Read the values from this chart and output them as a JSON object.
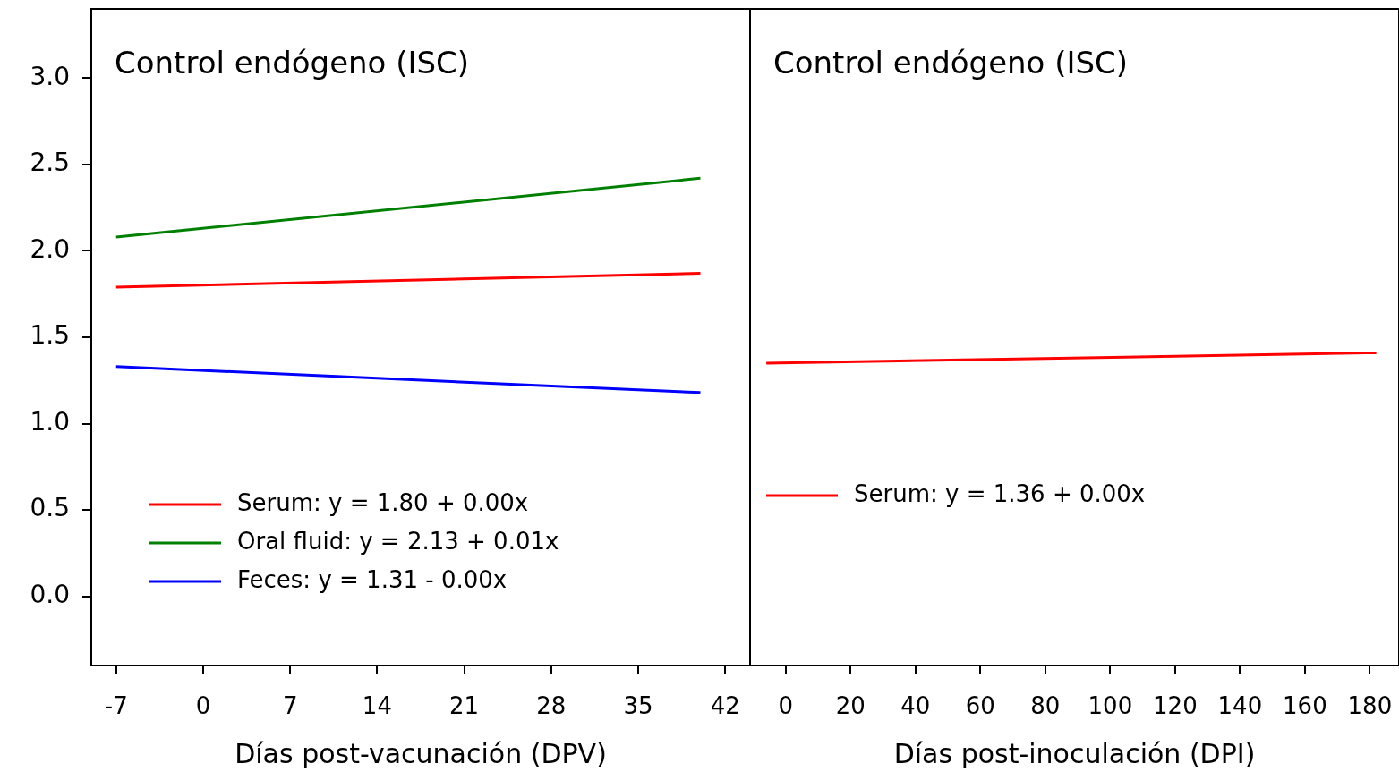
{
  "chart_data": [
    {
      "type": "line",
      "title": "Control endógeno (ISC)",
      "xlabel": "Días post-vacunación (DPV)",
      "xlim": [
        -9,
        44
      ],
      "xticks": [
        -7,
        0,
        7,
        14,
        21,
        28,
        35,
        42
      ],
      "ylim": [
        -0.4,
        3.4
      ],
      "yticks": [
        {
          "value": 0,
          "label": "0.0"
        },
        0.5,
        {
          "value": 1,
          "label": "1.0"
        },
        1.5,
        {
          "value": 2,
          "label": "2.0"
        },
        2.5,
        {
          "value": 3,
          "label": "3.0"
        }
      ],
      "legend": "bottom left",
      "marker": "none",
      "line_style": "solid",
      "series": [
        {
          "name": "Serum: y = 1.80 + 0.00x",
          "color": "#ff0000",
          "x": [
            -7,
            40
          ],
          "values": [
            1.79,
            1.87
          ]
        },
        {
          "name": "Oral fluid: y = 2.13 + 0.01x",
          "color": "#008000",
          "x": [
            -7,
            40
          ],
          "values": [
            2.08,
            2.42
          ]
        },
        {
          "name": "Feces: y = 1.31 - 0.00x",
          "color": "#0000ff",
          "x": [
            -7,
            40
          ],
          "values": [
            1.33,
            1.18
          ]
        }
      ]
    },
    {
      "type": "line",
      "title": "Control endógeno (ISC)",
      "xlabel": "Días post-inoculación (DPI)",
      "xlim": [
        -11,
        189
      ],
      "xticks": [
        0,
        20,
        40,
        60,
        80,
        100,
        120,
        140,
        160,
        180
      ],
      "ylim": [
        -0.4,
        3.4
      ],
      "tick_labels": "x",
      "legend": "left",
      "marker": "none",
      "line_style": "solid",
      "series": [
        {
          "name": "Serum: y = 1.36 + 0.00x",
          "color": "#ff0000",
          "x": [
            -6,
            182
          ],
          "values": [
            1.35,
            1.41
          ]
        }
      ]
    }
  ]
}
